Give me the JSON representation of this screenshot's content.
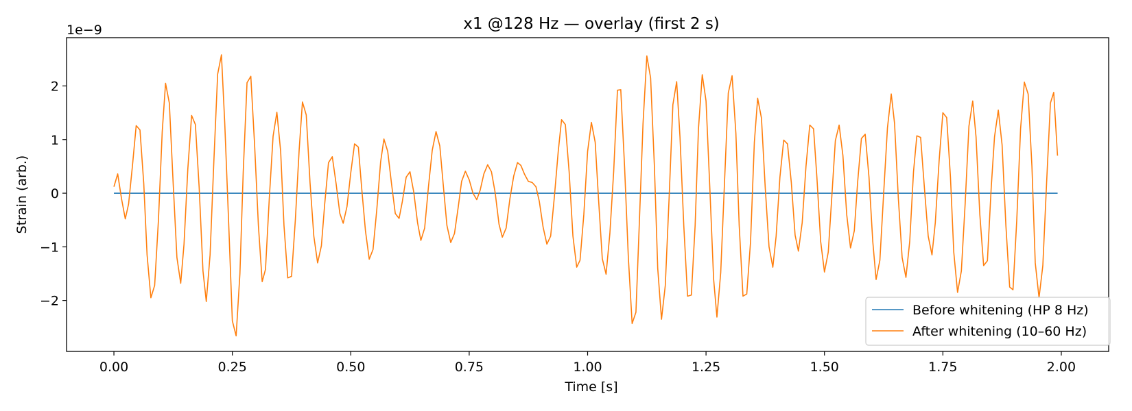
{
  "chart_data": {
    "type": "line",
    "title": "x1 @128 Hz — overlay (first 2 s)",
    "xlabel": "Time [s]",
    "ylabel": "Strain (arb.)",
    "y_offset_text": "1e−9",
    "xlim": [
      -0.1,
      2.1
    ],
    "ylim": [
      -2.95,
      2.9
    ],
    "xticks": [
      0.0,
      0.25,
      0.5,
      0.75,
      1.0,
      1.25,
      1.5,
      1.75,
      2.0
    ],
    "xtick_labels": [
      "0.00",
      "0.25",
      "0.50",
      "0.75",
      "1.00",
      "1.25",
      "1.50",
      "1.75",
      "2.00"
    ],
    "yticks": [
      -2,
      -1,
      0,
      1,
      2
    ],
    "ytick_labels": [
      "−2",
      "−1",
      "0",
      "1",
      "2"
    ],
    "grid": false,
    "legend_position": "bottom-right",
    "series": [
      {
        "name": "Before whitening (HP 8 Hz)",
        "color": "#1f77b4",
        "x": [
          0.0,
          1.9922
        ],
        "y": [
          0.0,
          0.0
        ]
      },
      {
        "name": "After whitening (10–60 Hz)",
        "color": "#ff7f0e",
        "x": [
          0.0,
          0.008,
          0.016,
          0.024,
          0.031,
          0.039,
          0.047,
          0.055,
          0.063,
          0.07,
          0.078,
          0.086,
          0.094,
          0.102,
          0.109,
          0.117,
          0.125,
          0.133,
          0.141,
          0.148,
          0.156,
          0.164,
          0.172,
          0.18,
          0.188,
          0.195,
          0.203,
          0.211,
          0.219,
          0.227,
          0.234,
          0.242,
          0.25,
          0.258,
          0.266,
          0.273,
          0.281,
          0.289,
          0.297,
          0.305,
          0.313,
          0.32,
          0.328,
          0.336,
          0.344,
          0.352,
          0.359,
          0.367,
          0.375,
          0.383,
          0.391,
          0.398,
          0.406,
          0.414,
          0.422,
          0.43,
          0.438,
          0.445,
          0.453,
          0.461,
          0.469,
          0.477,
          0.484,
          0.492,
          0.5,
          0.508,
          0.516,
          0.523,
          0.531,
          0.539,
          0.547,
          0.555,
          0.563,
          0.57,
          0.578,
          0.586,
          0.594,
          0.602,
          0.609,
          0.617,
          0.625,
          0.633,
          0.641,
          0.648,
          0.656,
          0.664,
          0.672,
          0.68,
          0.688,
          0.695,
          0.703,
          0.711,
          0.719,
          0.727,
          0.734,
          0.742,
          0.75,
          0.758,
          0.766,
          0.773,
          0.781,
          0.789,
          0.797,
          0.805,
          0.813,
          0.82,
          0.828,
          0.836,
          0.844,
          0.852,
          0.859,
          0.867,
          0.875,
          0.883,
          0.891,
          0.898,
          0.906,
          0.914,
          0.922,
          0.93,
          0.938,
          0.945,
          0.953,
          0.961,
          0.969,
          0.977,
          0.984,
          0.992,
          1.0,
          1.008,
          1.016,
          1.023,
          1.031,
          1.039,
          1.047,
          1.055,
          1.063,
          1.07,
          1.078,
          1.086,
          1.094,
          1.102,
          1.109,
          1.117,
          1.125,
          1.133,
          1.141,
          1.148,
          1.156,
          1.164,
          1.172,
          1.18,
          1.188,
          1.195,
          1.203,
          1.211,
          1.219,
          1.227,
          1.234,
          1.242,
          1.25,
          1.258,
          1.266,
          1.273,
          1.281,
          1.289,
          1.297,
          1.305,
          1.313,
          1.32,
          1.328,
          1.336,
          1.344,
          1.352,
          1.359,
          1.367,
          1.375,
          1.383,
          1.391,
          1.398,
          1.406,
          1.414,
          1.422,
          1.43,
          1.438,
          1.445,
          1.453,
          1.461,
          1.469,
          1.477,
          1.484,
          1.492,
          1.5,
          1.508,
          1.516,
          1.523,
          1.531,
          1.539,
          1.547,
          1.555,
          1.563,
          1.57,
          1.578,
          1.586,
          1.594,
          1.602,
          1.609,
          1.617,
          1.625,
          1.633,
          1.641,
          1.648,
          1.656,
          1.664,
          1.672,
          1.68,
          1.688,
          1.695,
          1.703,
          1.711,
          1.719,
          1.727,
          1.734,
          1.742,
          1.75,
          1.758,
          1.766,
          1.773,
          1.781,
          1.789,
          1.797,
          1.805,
          1.813,
          1.82,
          1.828,
          1.836,
          1.844,
          1.852,
          1.859,
          1.867,
          1.875,
          1.883,
          1.891,
          1.898,
          1.906,
          1.914,
          1.922,
          1.93,
          1.938,
          1.945,
          1.953,
          1.961,
          1.969,
          1.977,
          1.984,
          1.992
        ],
        "y": [
          0.12,
          0.36,
          -0.1,
          -0.48,
          -0.2,
          0.5,
          1.26,
          1.18,
          0.18,
          -1.15,
          -1.95,
          -1.72,
          -0.5,
          1.15,
          2.05,
          1.68,
          0.2,
          -1.2,
          -1.68,
          -0.95,
          0.45,
          1.45,
          1.28,
          0.1,
          -1.45,
          -2.02,
          -1.15,
          0.6,
          2.22,
          2.58,
          1.3,
          -0.5,
          -2.38,
          -2.66,
          -1.5,
          0.4,
          2.06,
          2.18,
          0.9,
          -0.6,
          -1.65,
          -1.42,
          -0.1,
          1.06,
          1.51,
          0.78,
          -0.6,
          -1.58,
          -1.55,
          -0.5,
          0.8,
          1.7,
          1.46,
          0.2,
          -0.8,
          -1.3,
          -0.98,
          -0.2,
          0.57,
          0.68,
          0.18,
          -0.38,
          -0.56,
          -0.25,
          0.38,
          0.92,
          0.86,
          0.1,
          -0.7,
          -1.23,
          -1.05,
          -0.3,
          0.58,
          1.01,
          0.78,
          0.18,
          -0.38,
          -0.47,
          -0.15,
          0.3,
          0.4,
          0.02,
          -0.55,
          -0.88,
          -0.65,
          0.12,
          0.8,
          1.15,
          0.88,
          0.18,
          -0.6,
          -0.92,
          -0.75,
          -0.25,
          0.22,
          0.41,
          0.25,
          0.0,
          -0.12,
          0.05,
          0.36,
          0.53,
          0.4,
          0.0,
          -0.58,
          -0.82,
          -0.65,
          -0.1,
          0.32,
          0.57,
          0.52,
          0.35,
          0.22,
          0.2,
          0.12,
          -0.15,
          -0.63,
          -0.95,
          -0.8,
          -0.05,
          0.78,
          1.37,
          1.28,
          0.4,
          -0.8,
          -1.38,
          -1.25,
          -0.4,
          0.78,
          1.32,
          0.95,
          -0.1,
          -1.22,
          -1.51,
          -0.75,
          0.4,
          1.92,
          1.93,
          0.5,
          -1.2,
          -2.43,
          -2.22,
          -0.6,
          1.3,
          2.56,
          2.15,
          0.5,
          -1.4,
          -2.35,
          -1.72,
          -0.1,
          1.65,
          2.08,
          1.05,
          -0.6,
          -1.92,
          -1.9,
          -0.6,
          1.2,
          2.21,
          1.72,
          0.1,
          -1.6,
          -2.31,
          -1.48,
          0.2,
          1.87,
          2.19,
          1.12,
          -0.6,
          -1.92,
          -1.88,
          -0.9,
          0.95,
          1.77,
          1.4,
          0.1,
          -1.0,
          -1.38,
          -0.8,
          0.3,
          0.99,
          0.92,
          0.2,
          -0.78,
          -1.08,
          -0.55,
          0.5,
          1.27,
          1.2,
          0.3,
          -0.9,
          -1.47,
          -1.1,
          0.0,
          0.98,
          1.27,
          0.7,
          -0.4,
          -1.02,
          -0.7,
          0.2,
          1.02,
          1.1,
          0.3,
          -0.9,
          -1.61,
          -1.25,
          0.0,
          1.22,
          1.85,
          1.3,
          -0.1,
          -1.2,
          -1.57,
          -0.9,
          0.4,
          1.07,
          1.04,
          0.1,
          -0.8,
          -1.15,
          -0.55,
          0.6,
          1.5,
          1.41,
          0.3,
          -1.1,
          -1.85,
          -1.45,
          -0.2,
          1.25,
          1.72,
          1.05,
          -0.4,
          -1.35,
          -1.26,
          0.1,
          1.05,
          1.55,
          0.9,
          -0.6,
          -1.75,
          -1.8,
          -0.5,
          1.2,
          2.07,
          1.85,
          0.5,
          -1.3,
          -1.95,
          -1.35,
          0.2,
          1.68,
          1.88,
          0.7
        ]
      }
    ]
  }
}
